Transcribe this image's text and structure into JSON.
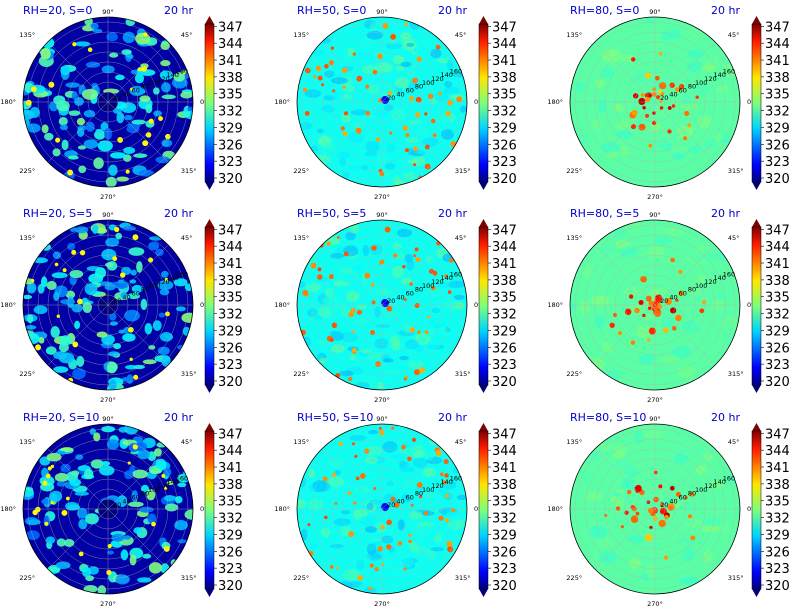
{
  "figure": {
    "time_label": "20 hr",
    "angle_ticks": [
      "0°",
      "45°",
      "90°",
      "135°",
      "180°",
      "225°",
      "270°",
      "315°"
    ],
    "radial_ticks": [
      "20",
      "40",
      "60",
      "80",
      "100",
      "120",
      "140",
      "160"
    ],
    "colorbar_ticks": [
      "347",
      "344",
      "341",
      "338",
      "335",
      "332",
      "329",
      "326",
      "323",
      "320"
    ]
  },
  "chart_data": [
    {
      "type": "heatmap",
      "projection": "polar",
      "title": "RH=20, S=0",
      "subtitle": "20 hr",
      "rh": 20,
      "s": 0,
      "colorbar": {
        "min": 320,
        "max": 347,
        "colormap": "jet"
      }
    },
    {
      "type": "heatmap",
      "projection": "polar",
      "title": "RH=50, S=0",
      "subtitle": "20 hr",
      "rh": 50,
      "s": 0,
      "colorbar": {
        "min": 320,
        "max": 347,
        "colormap": "jet"
      }
    },
    {
      "type": "heatmap",
      "projection": "polar",
      "title": "RH=80, S=0",
      "subtitle": "20 hr",
      "rh": 80,
      "s": 0,
      "colorbar": {
        "min": 320,
        "max": 347,
        "colormap": "jet"
      }
    },
    {
      "type": "heatmap",
      "projection": "polar",
      "title": "RH=20, S=5",
      "subtitle": "20 hr",
      "rh": 20,
      "s": 5,
      "colorbar": {
        "min": 320,
        "max": 347,
        "colormap": "jet"
      }
    },
    {
      "type": "heatmap",
      "projection": "polar",
      "title": "RH=50, S=5",
      "subtitle": "20 hr",
      "rh": 50,
      "s": 5,
      "colorbar": {
        "min": 320,
        "max": 347,
        "colormap": "jet"
      }
    },
    {
      "type": "heatmap",
      "projection": "polar",
      "title": "RH=80, S=5",
      "subtitle": "20 hr",
      "rh": 80,
      "s": 5,
      "colorbar": {
        "min": 320,
        "max": 347,
        "colormap": "jet"
      }
    },
    {
      "type": "heatmap",
      "projection": "polar",
      "title": "RH=20, S=10",
      "subtitle": "20 hr",
      "rh": 20,
      "s": 10,
      "colorbar": {
        "min": 320,
        "max": 347,
        "colormap": "jet"
      }
    },
    {
      "type": "heatmap",
      "projection": "polar",
      "title": "RH=50, S=10",
      "subtitle": "20 hr",
      "rh": 50,
      "s": 10,
      "colorbar": {
        "min": 320,
        "max": 347,
        "colormap": "jet"
      }
    },
    {
      "type": "heatmap",
      "projection": "polar",
      "title": "RH=80, S=10",
      "subtitle": "20 hr",
      "rh": 80,
      "s": 10,
      "colorbar": {
        "min": 320,
        "max": 347,
        "colormap": "jet"
      }
    }
  ]
}
